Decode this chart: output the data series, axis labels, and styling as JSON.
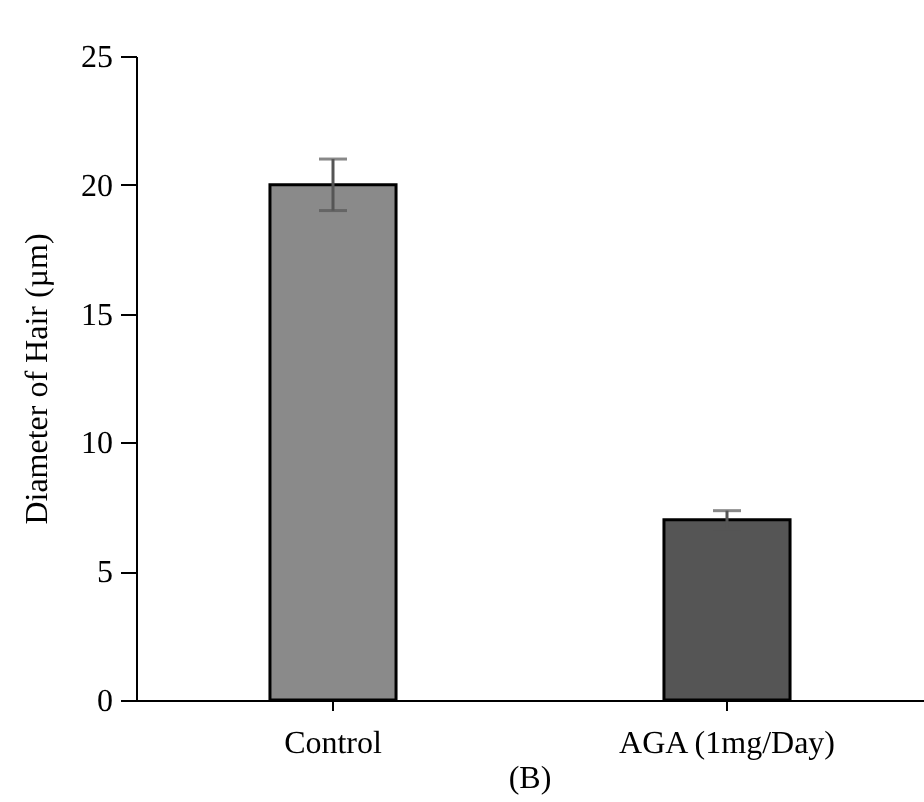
{
  "chart_data": {
    "type": "bar",
    "ylabel": "Diameter of Hair  (µm)",
    "categories": [
      "Control",
      "AGA (1mg/Day)"
    ],
    "values": [
      20,
      7
    ],
    "errors": [
      1,
      0.35
    ],
    "colors": [
      "#8a8a8a",
      "#555555"
    ],
    "ylim": [
      0,
      25
    ],
    "yticks": [
      0,
      5,
      10,
      15,
      20,
      25
    ],
    "grid": false,
    "annotations": [
      "(B)"
    ]
  }
}
